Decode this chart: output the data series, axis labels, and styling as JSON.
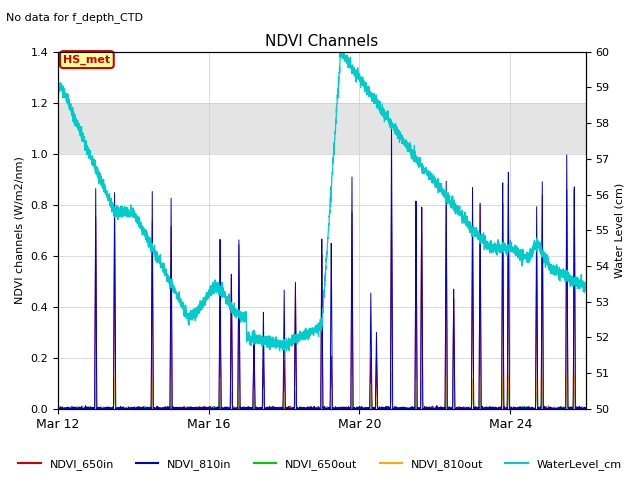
{
  "title": "NDVI Channels",
  "subtitle": "No data for f_depth_CTD",
  "ylabel_left": "NDVI channels (W/m2/nm)",
  "ylabel_right": "Water Level (cm)",
  "ylim_left": [
    0.0,
    1.4
  ],
  "ylim_right": [
    50.0,
    60.0
  ],
  "yticks_left": [
    0.0,
    0.2,
    0.4,
    0.6,
    0.8,
    1.0,
    1.2,
    1.4
  ],
  "yticks_right": [
    50.0,
    51.0,
    52.0,
    53.0,
    54.0,
    55.0,
    56.0,
    57.0,
    58.0,
    59.0,
    60.0
  ],
  "gray_band_ymin": 1.0,
  "gray_band_ymax": 1.2,
  "annotation_box": "HS_met",
  "annotation_box_color": "#cc0000",
  "annotation_box_bg": "#ffff99",
  "colors": {
    "NDVI_650in": "#cc0000",
    "NDVI_810in": "#0000cc",
    "NDVI_650out": "#00cc00",
    "NDVI_810out": "#ffaa00",
    "WaterLevel_cm": "#00cccc"
  },
  "xlim": [
    0,
    14
  ],
  "xtick_positions": [
    0,
    4,
    8,
    12
  ],
  "xtick_labels": [
    "Mar 12",
    "Mar 16",
    "Mar 20",
    "Mar 24"
  ],
  "spike_810in": [
    [
      1.0,
      0.87
    ],
    [
      1.5,
      0.86
    ],
    [
      2.5,
      0.87
    ],
    [
      3.0,
      0.85
    ],
    [
      4.3,
      0.67
    ],
    [
      4.6,
      0.56
    ],
    [
      4.8,
      0.66
    ],
    [
      5.2,
      0.3
    ],
    [
      5.45,
      0.39
    ],
    [
      6.0,
      0.49
    ],
    [
      6.3,
      0.5
    ],
    [
      7.0,
      0.71
    ],
    [
      7.25,
      0.69
    ],
    [
      7.8,
      0.93
    ],
    [
      8.3,
      0.47
    ],
    [
      8.45,
      0.3
    ],
    [
      8.85,
      1.15
    ],
    [
      9.5,
      0.85
    ],
    [
      9.65,
      0.84
    ],
    [
      10.3,
      0.93
    ],
    [
      10.5,
      0.48
    ],
    [
      11.0,
      0.89
    ],
    [
      11.2,
      0.83
    ],
    [
      11.8,
      0.93
    ],
    [
      11.95,
      0.96
    ],
    [
      12.7,
      0.83
    ],
    [
      12.85,
      0.9
    ],
    [
      13.5,
      1.0
    ],
    [
      13.7,
      0.91
    ]
  ],
  "spike_650in": [
    [
      1.0,
      0.76
    ],
    [
      1.5,
      0.75
    ],
    [
      2.5,
      0.75
    ],
    [
      3.0,
      0.74
    ],
    [
      4.3,
      0.4
    ],
    [
      4.6,
      0.55
    ],
    [
      4.8,
      0.65
    ],
    [
      5.2,
      0.28
    ],
    [
      5.45,
      0.2
    ],
    [
      6.0,
      0.2
    ],
    [
      6.3,
      0.48
    ],
    [
      7.0,
      0.64
    ],
    [
      7.25,
      0.22
    ],
    [
      7.8,
      0.79
    ],
    [
      8.3,
      0.2
    ],
    [
      8.45,
      0.2
    ],
    [
      8.85,
      0.81
    ],
    [
      9.5,
      0.79
    ],
    [
      9.65,
      0.84
    ],
    [
      10.3,
      0.83
    ],
    [
      10.5,
      0.45
    ],
    [
      11.0,
      0.68
    ],
    [
      11.2,
      0.82
    ],
    [
      11.8,
      0.85
    ],
    [
      11.95,
      0.91
    ],
    [
      12.7,
      0.62
    ],
    [
      12.85,
      0.85
    ],
    [
      13.5,
      0.86
    ],
    [
      13.7,
      0.9
    ]
  ],
  "spike_650out": [
    [
      1.0,
      0.1
    ],
    [
      1.5,
      0.1
    ],
    [
      2.5,
      0.1
    ],
    [
      3.0,
      0.1
    ],
    [
      4.3,
      0.08
    ],
    [
      4.6,
      0.06
    ],
    [
      4.8,
      0.1
    ],
    [
      5.2,
      0.07
    ],
    [
      5.45,
      0.07
    ],
    [
      6.0,
      0.05
    ],
    [
      6.3,
      0.05
    ],
    [
      7.0,
      0.07
    ],
    [
      7.25,
      0.06
    ],
    [
      7.8,
      0.1
    ],
    [
      8.3,
      0.09
    ],
    [
      8.45,
      0.04
    ],
    [
      8.85,
      0.13
    ],
    [
      9.5,
      0.1
    ],
    [
      9.65,
      0.1
    ],
    [
      10.3,
      0.1
    ],
    [
      10.5,
      0.08
    ],
    [
      11.0,
      0.1
    ],
    [
      11.2,
      0.1
    ],
    [
      11.8,
      0.1
    ],
    [
      11.95,
      0.12
    ],
    [
      12.7,
      0.1
    ],
    [
      12.85,
      0.1
    ],
    [
      13.5,
      0.12
    ],
    [
      13.7,
      0.13
    ]
  ],
  "spike_810out": [
    [
      1.0,
      0.12
    ],
    [
      1.5,
      0.12
    ],
    [
      2.5,
      0.11
    ],
    [
      3.0,
      0.12
    ],
    [
      4.3,
      0.12
    ],
    [
      4.6,
      0.07
    ],
    [
      4.8,
      0.1
    ],
    [
      5.2,
      0.08
    ],
    [
      5.45,
      0.08
    ],
    [
      6.0,
      0.06
    ],
    [
      6.3,
      0.07
    ],
    [
      7.0,
      0.1
    ],
    [
      7.25,
      0.08
    ],
    [
      7.8,
      0.13
    ],
    [
      8.3,
      0.1
    ],
    [
      8.45,
      0.05
    ],
    [
      8.85,
      0.15
    ],
    [
      9.5,
      0.12
    ],
    [
      9.65,
      0.12
    ],
    [
      10.3,
      0.13
    ],
    [
      10.5,
      0.1
    ],
    [
      11.0,
      0.12
    ],
    [
      11.2,
      0.13
    ],
    [
      11.8,
      0.13
    ],
    [
      11.95,
      0.14
    ],
    [
      12.7,
      0.12
    ],
    [
      12.85,
      0.13
    ],
    [
      13.5,
      0.14
    ],
    [
      13.7,
      0.14
    ]
  ]
}
